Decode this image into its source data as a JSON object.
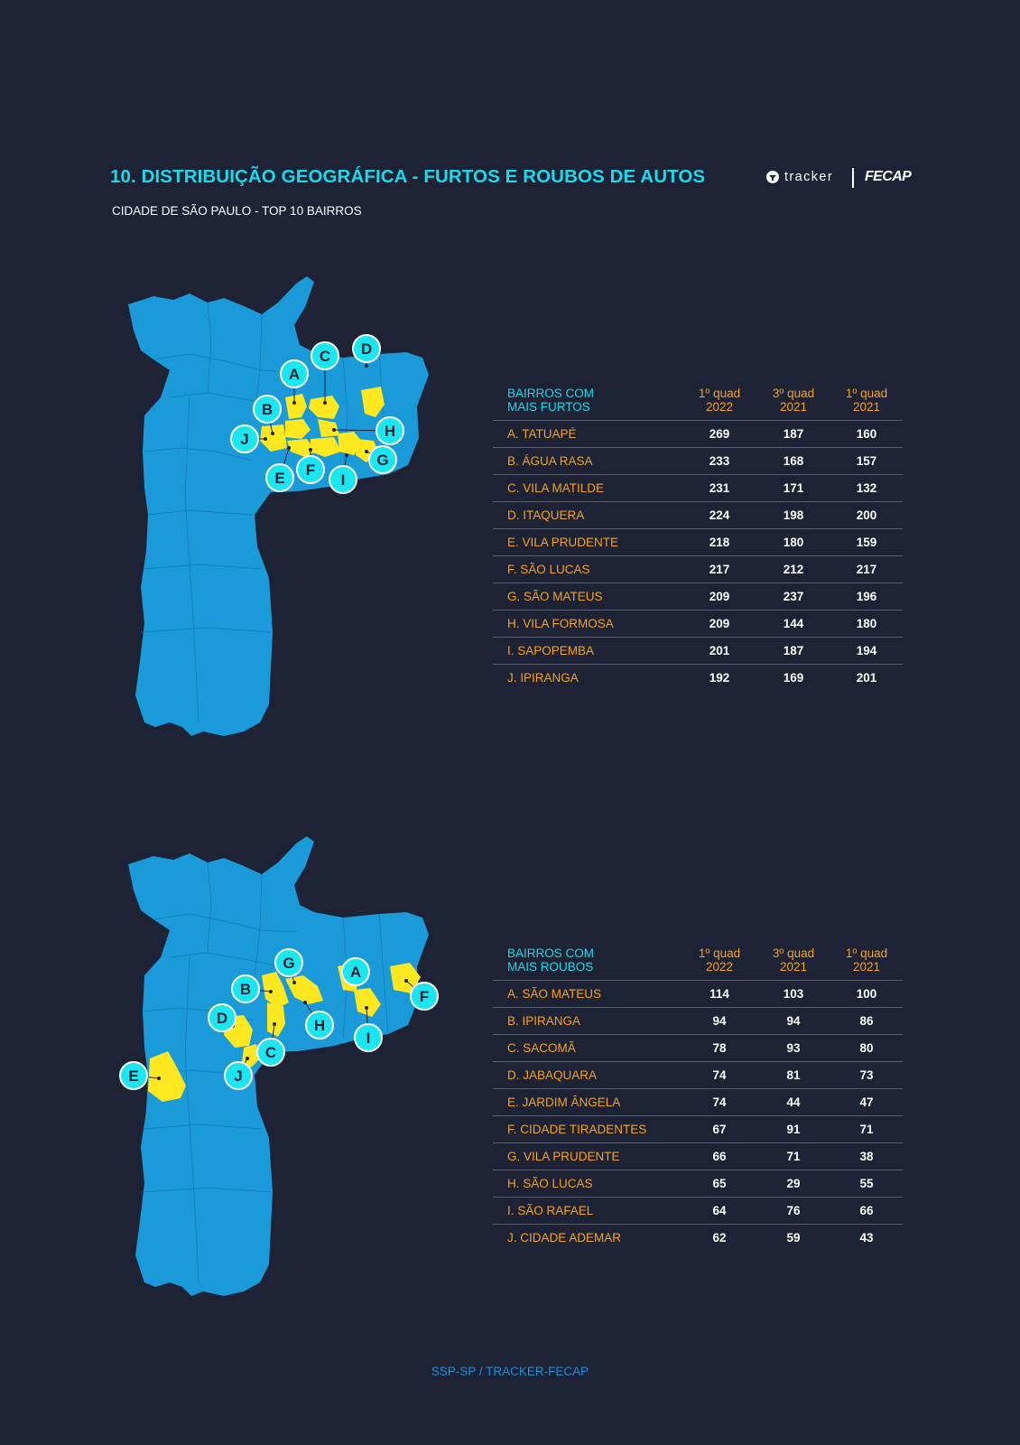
{
  "header": {
    "title": "10. DISTRIBUIÇÃO GEOGRÁFICA - FURTOS E ROUBOS DE AUTOS",
    "subtitle": "CIDADE DE SÃO PAULO -  TOP 10 BAIRROS"
  },
  "logos": {
    "tracker": "tracker",
    "fecap": "FECAP"
  },
  "colors": {
    "background": "#1e2235",
    "map": "#1a9ad9",
    "highlight": "#ffe81f",
    "accent": "#19d9ea",
    "orange": "#f5a21d"
  },
  "furtos": {
    "header_label": [
      "BAIRROS COM",
      "MAIS FURTOS"
    ],
    "columns": [
      [
        "1º quad",
        "2022"
      ],
      [
        "3º quad",
        "2021"
      ],
      [
        "1º quad",
        "2021"
      ]
    ],
    "rows": [
      {
        "name": "A. TATUAPÉ",
        "values": [
          "269",
          "187",
          "160"
        ]
      },
      {
        "name": "B. ÁGUA RASA",
        "values": [
          "233",
          "168",
          "157"
        ]
      },
      {
        "name": "C. VILA MATILDE",
        "values": [
          "231",
          "171",
          "132"
        ]
      },
      {
        "name": "D. ITAQUERA",
        "values": [
          "224",
          "198",
          "200"
        ]
      },
      {
        "name": "E. VILA PRUDENTE",
        "values": [
          "218",
          "180",
          "159"
        ]
      },
      {
        "name": "F. SÃO LUCAS",
        "values": [
          "217",
          "212",
          "217"
        ]
      },
      {
        "name": "G. SÃO MATEUS",
        "values": [
          "209",
          "237",
          "196"
        ]
      },
      {
        "name": "H. VILA FORMOSA",
        "values": [
          "209",
          "144",
          "180"
        ]
      },
      {
        "name": "I. SAPOPEMBA",
        "values": [
          "201",
          "187",
          "194"
        ]
      },
      {
        "name": "J. IPIRANGA",
        "values": [
          "192",
          "169",
          "201"
        ]
      }
    ],
    "map_markers": [
      "A",
      "B",
      "C",
      "D",
      "E",
      "F",
      "G",
      "H",
      "I",
      "J"
    ]
  },
  "roubos": {
    "header_label": [
      "BAIRROS COM",
      "MAIS ROUBOS"
    ],
    "columns": [
      [
        "1º quad",
        "2022"
      ],
      [
        "3º quad",
        "2021"
      ],
      [
        "1º quad",
        "2021"
      ]
    ],
    "rows": [
      {
        "name": "A. SÃO MATEUS",
        "values": [
          "114",
          "103",
          "100"
        ]
      },
      {
        "name": "B.  IPIRANGA",
        "values": [
          "94",
          "94",
          "86"
        ]
      },
      {
        "name": "C. SACOMÃ",
        "values": [
          "78",
          "93",
          "80"
        ]
      },
      {
        "name": "D. JABAQUARA",
        "values": [
          "74",
          "81",
          "73"
        ]
      },
      {
        "name": "E. JARDIM ÂNGELA",
        "values": [
          "74",
          "44",
          "47"
        ]
      },
      {
        "name": "F.  CIDADE TIRADENTES",
        "values": [
          "67",
          "91",
          "71"
        ]
      },
      {
        "name": "G. VILA PRUDENTE",
        "values": [
          "66",
          "71",
          "38"
        ]
      },
      {
        "name": "H. SÃO LUCAS",
        "values": [
          "65",
          "29",
          "55"
        ]
      },
      {
        "name": "I. SÃO RAFAEL",
        "values": [
          "64",
          "76",
          "66"
        ]
      },
      {
        "name": "J. CIDADE ADEMAR",
        "values": [
          "62",
          "59",
          "43"
        ]
      }
    ],
    "map_markers": [
      "A",
      "B",
      "C",
      "D",
      "E",
      "F",
      "G",
      "H",
      "I",
      "J"
    ]
  },
  "footer": {
    "source": "SSP-SP / TRACKER-FECAP"
  }
}
